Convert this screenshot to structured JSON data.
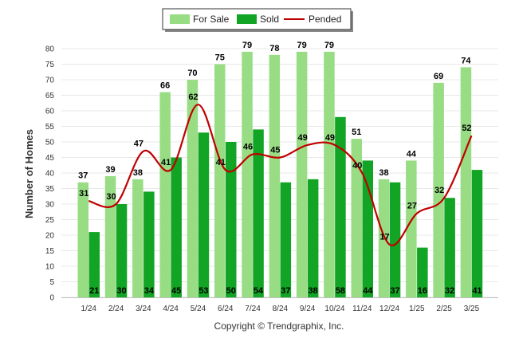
{
  "chart_data": {
    "type": "bar",
    "categories": [
      "1/24",
      "2/24",
      "3/24",
      "4/24",
      "5/24",
      "6/24",
      "7/24",
      "8/24",
      "9/24",
      "10/24",
      "11/24",
      "12/24",
      "1/25",
      "2/25",
      "3/25"
    ],
    "series": [
      {
        "name": "For Sale",
        "type": "bar",
        "color": "#98dd84",
        "values": [
          37,
          39,
          38,
          66,
          70,
          75,
          79,
          78,
          79,
          79,
          51,
          38,
          44,
          69,
          74
        ]
      },
      {
        "name": "Sold",
        "type": "bar",
        "color": "#12a424",
        "values": [
          21,
          30,
          34,
          45,
          53,
          50,
          54,
          37,
          38,
          58,
          44,
          37,
          16,
          32,
          41
        ]
      },
      {
        "name": "Pended",
        "type": "line",
        "color": "#c00000",
        "values": [
          31,
          30,
          47,
          41,
          62,
          41,
          46,
          45,
          49,
          49,
          40,
          17,
          27,
          32,
          52
        ]
      }
    ],
    "ylabel": "Number of Homes",
    "xlabel": "",
    "ylim": [
      0,
      80
    ],
    "yticks": [
      0,
      5,
      10,
      15,
      20,
      25,
      30,
      35,
      40,
      45,
      50,
      55,
      60,
      65,
      70,
      75,
      80
    ],
    "grid": true,
    "legend_position": "top-center"
  },
  "footer": {
    "copyright": "Copyright © Trendgraphix, Inc."
  }
}
